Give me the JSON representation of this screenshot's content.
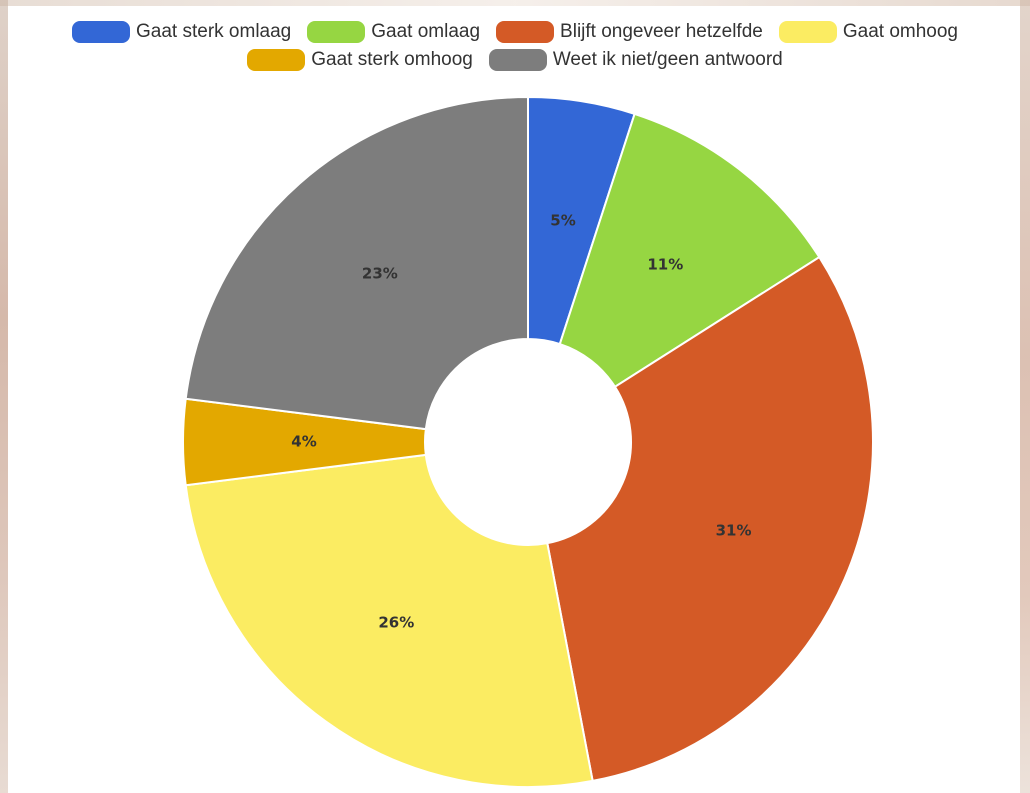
{
  "chart_data": {
    "type": "pie",
    "donut": true,
    "legend_position": "top",
    "slices": [
      {
        "label": "Gaat sterk omlaag",
        "value": 5,
        "value_label": "5%",
        "color": "#3367d6"
      },
      {
        "label": "Gaat omlaag",
        "value": 11,
        "value_label": "11%",
        "color": "#96d642"
      },
      {
        "label": "Blijft ongeveer hetzelfde",
        "value": 31,
        "value_label": "31%",
        "color": "#d45a26"
      },
      {
        "label": "Gaat omhoog",
        "value": 26,
        "value_label": "26%",
        "color": "#fbec62"
      },
      {
        "label": "Gaat sterk omhoog",
        "value": 4,
        "value_label": "4%",
        "color": "#e3a800"
      },
      {
        "label": "Weet ik niet/geen antwoord",
        "value": 23,
        "value_label": "23%",
        "color": "#7d7d7d"
      }
    ]
  }
}
